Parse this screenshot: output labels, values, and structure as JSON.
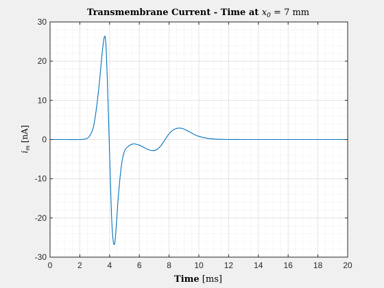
{
  "chart_data": {
    "type": "line",
    "title": {
      "prefix": "Transmembrane Current - Time at ",
      "var": "x",
      "sub": "0",
      "suffix": " = 7 mm"
    },
    "xlabel": {
      "bold": "Time",
      "unit": " [ms]"
    },
    "ylabel": {
      "var": "i",
      "sub": "m",
      "unit": " [nA]"
    },
    "xlim": [
      0,
      20
    ],
    "ylim": [
      -30,
      30
    ],
    "xticks": [
      0,
      2,
      4,
      6,
      8,
      10,
      12,
      14,
      16,
      18,
      20
    ],
    "yticks": [
      -30,
      -20,
      -10,
      0,
      10,
      20,
      30
    ],
    "grid": true,
    "minor_grid": true,
    "line_color": "#0072bd",
    "series": [
      {
        "x": [
          0,
          1,
          2,
          2.3,
          2.6,
          2.9,
          3.1,
          3.3,
          3.5,
          3.65,
          3.75,
          3.85,
          3.95,
          4.05,
          4.15,
          4.25,
          4.35,
          4.45,
          4.6,
          4.8,
          5.0,
          5.3,
          5.6,
          5.9,
          6.2,
          6.5,
          6.8,
          7.1,
          7.4,
          7.7,
          8.0,
          8.3,
          8.6,
          8.9,
          9.2,
          9.5,
          9.8,
          10.2,
          10.6,
          11,
          11.5,
          12,
          13,
          14,
          16,
          18,
          20
        ],
        "y": [
          0,
          0,
          0,
          0.1,
          0.6,
          3.0,
          7.5,
          14.0,
          22.0,
          26.2,
          24.5,
          15.0,
          3.0,
          -10.0,
          -21.0,
          -26.0,
          -26.4,
          -22.0,
          -14.0,
          -6.5,
          -3.0,
          -1.6,
          -1.1,
          -1.3,
          -1.8,
          -2.4,
          -2.8,
          -2.7,
          -1.8,
          -0.2,
          1.5,
          2.5,
          2.9,
          2.8,
          2.3,
          1.7,
          1.1,
          0.6,
          0.3,
          0.15,
          0.05,
          0.02,
          0,
          0,
          0,
          0,
          0
        ]
      }
    ]
  }
}
